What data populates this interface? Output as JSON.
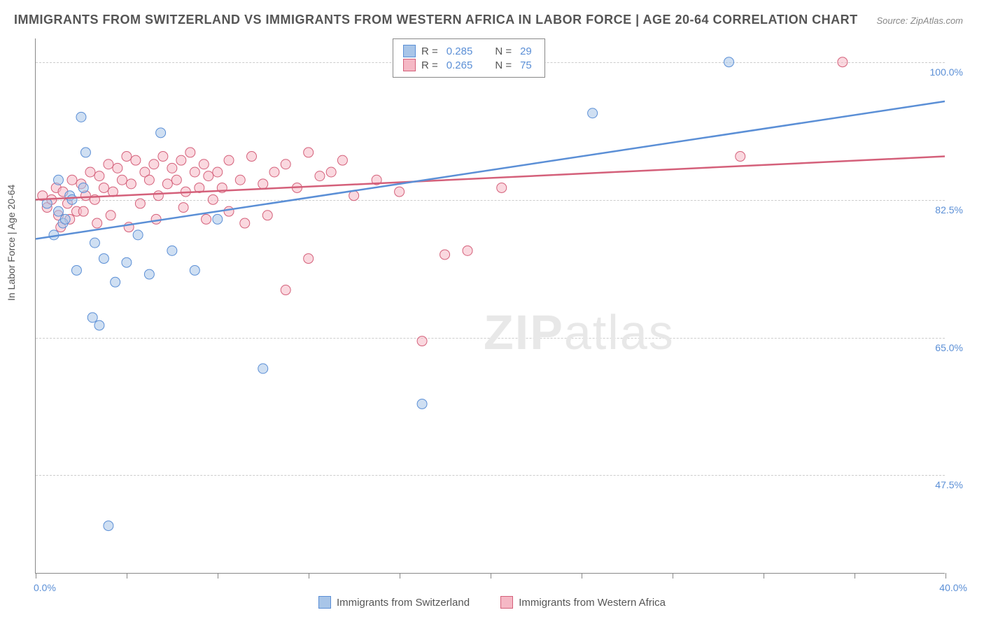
{
  "title": "IMMIGRANTS FROM SWITZERLAND VS IMMIGRANTS FROM WESTERN AFRICA IN LABOR FORCE | AGE 20-64 CORRELATION CHART",
  "source": "Source: ZipAtlas.com",
  "watermark": "ZIPatlas",
  "chart": {
    "type": "scatter",
    "background_color": "#ffffff",
    "grid_color": "#cccccc",
    "axis_color": "#888888",
    "text_color": "#555555",
    "value_color": "#5b8fd6",
    "xlim": [
      0.0,
      40.0
    ],
    "ylim": [
      35.0,
      103.0
    ],
    "y_ticks": [
      47.5,
      65.0,
      82.5,
      100.0
    ],
    "y_tick_labels": [
      "47.5%",
      "65.0%",
      "82.5%",
      "100.0%"
    ],
    "x_ticks": [
      0.0,
      4.0,
      8.0,
      12.0,
      16.0,
      20.0,
      24.0,
      28.0,
      32.0,
      36.0,
      40.0
    ],
    "x_start_label": "0.0%",
    "x_end_label": "40.0%",
    "ylabel": "In Labor Force | Age 20-64",
    "marker_radius": 7,
    "marker_stroke_width": 1,
    "line_width": 2.5,
    "series": [
      {
        "id": "switzerland",
        "name": "Immigrants from Switzerland",
        "color_fill": "#a8c5e8",
        "color_stroke": "#5b8fd6",
        "r": "0.285",
        "n": "29",
        "regression_line": {
          "x1": 0.0,
          "y1": 77.5,
          "x2": 40.0,
          "y2": 95.0
        },
        "points": [
          [
            0.5,
            82.0
          ],
          [
            0.8,
            78.0
          ],
          [
            1.0,
            81.0
          ],
          [
            1.2,
            79.5
          ],
          [
            1.5,
            83.0
          ],
          [
            1.8,
            73.5
          ],
          [
            2.0,
            93.0
          ],
          [
            2.2,
            88.5
          ],
          [
            2.5,
            67.5
          ],
          [
            2.8,
            66.5
          ],
          [
            3.0,
            75.0
          ],
          [
            3.2,
            41.0
          ],
          [
            3.5,
            72.0
          ],
          [
            4.0,
            74.5
          ],
          [
            4.5,
            78.0
          ],
          [
            5.0,
            73.0
          ],
          [
            5.5,
            91.0
          ],
          [
            6.0,
            76.0
          ],
          [
            7.0,
            73.5
          ],
          [
            8.0,
            80.0
          ],
          [
            10.0,
            61.0
          ],
          [
            17.0,
            56.5
          ],
          [
            24.5,
            93.5
          ],
          [
            30.5,
            100.0
          ],
          [
            1.0,
            85.0
          ],
          [
            1.3,
            80.0
          ],
          [
            1.6,
            82.5
          ],
          [
            2.1,
            84.0
          ],
          [
            2.6,
            77.0
          ]
        ]
      },
      {
        "id": "western_africa",
        "name": "Immigrants from Western Africa",
        "color_fill": "#f5b8c5",
        "color_stroke": "#d4607a",
        "r": "0.265",
        "n": "75",
        "regression_line": {
          "x1": 0.0,
          "y1": 82.5,
          "x2": 40.0,
          "y2": 88.0
        },
        "points": [
          [
            0.3,
            83.0
          ],
          [
            0.5,
            81.5
          ],
          [
            0.7,
            82.5
          ],
          [
            0.9,
            84.0
          ],
          [
            1.0,
            80.5
          ],
          [
            1.2,
            83.5
          ],
          [
            1.4,
            82.0
          ],
          [
            1.6,
            85.0
          ],
          [
            1.8,
            81.0
          ],
          [
            2.0,
            84.5
          ],
          [
            2.2,
            83.0
          ],
          [
            2.4,
            86.0
          ],
          [
            2.6,
            82.5
          ],
          [
            2.8,
            85.5
          ],
          [
            3.0,
            84.0
          ],
          [
            3.2,
            87.0
          ],
          [
            3.4,
            83.5
          ],
          [
            3.6,
            86.5
          ],
          [
            3.8,
            85.0
          ],
          [
            4.0,
            88.0
          ],
          [
            4.2,
            84.5
          ],
          [
            4.4,
            87.5
          ],
          [
            4.6,
            82.0
          ],
          [
            4.8,
            86.0
          ],
          [
            5.0,
            85.0
          ],
          [
            5.2,
            87.0
          ],
          [
            5.4,
            83.0
          ],
          [
            5.6,
            88.0
          ],
          [
            5.8,
            84.5
          ],
          [
            6.0,
            86.5
          ],
          [
            6.2,
            85.0
          ],
          [
            6.4,
            87.5
          ],
          [
            6.6,
            83.5
          ],
          [
            6.8,
            88.5
          ],
          [
            7.0,
            86.0
          ],
          [
            7.2,
            84.0
          ],
          [
            7.4,
            87.0
          ],
          [
            7.6,
            85.5
          ],
          [
            7.8,
            82.5
          ],
          [
            8.0,
            86.0
          ],
          [
            8.2,
            84.0
          ],
          [
            8.5,
            87.5
          ],
          [
            9.0,
            85.0
          ],
          [
            9.5,
            88.0
          ],
          [
            10.0,
            84.5
          ],
          [
            10.5,
            86.0
          ],
          [
            11.0,
            87.0
          ],
          [
            11.0,
            71.0
          ],
          [
            11.5,
            84.0
          ],
          [
            12.0,
            88.5
          ],
          [
            12.0,
            75.0
          ],
          [
            12.5,
            85.5
          ],
          [
            13.0,
            86.0
          ],
          [
            13.5,
            87.5
          ],
          [
            14.0,
            83.0
          ],
          [
            15.0,
            85.0
          ],
          [
            16.0,
            83.5
          ],
          [
            17.0,
            64.5
          ],
          [
            18.0,
            75.5
          ],
          [
            19.0,
            76.0
          ],
          [
            20.5,
            84.0
          ],
          [
            31.0,
            88.0
          ],
          [
            35.5,
            100.0
          ],
          [
            1.1,
            79.0
          ],
          [
            1.5,
            80.0
          ],
          [
            2.1,
            81.0
          ],
          [
            2.7,
            79.5
          ],
          [
            3.3,
            80.5
          ],
          [
            4.1,
            79.0
          ],
          [
            5.3,
            80.0
          ],
          [
            6.5,
            81.5
          ],
          [
            7.5,
            80.0
          ],
          [
            8.5,
            81.0
          ],
          [
            9.2,
            79.5
          ],
          [
            10.2,
            80.5
          ]
        ]
      }
    ]
  },
  "legend_labels": {
    "r_prefix": "R =",
    "n_prefix": "N ="
  }
}
